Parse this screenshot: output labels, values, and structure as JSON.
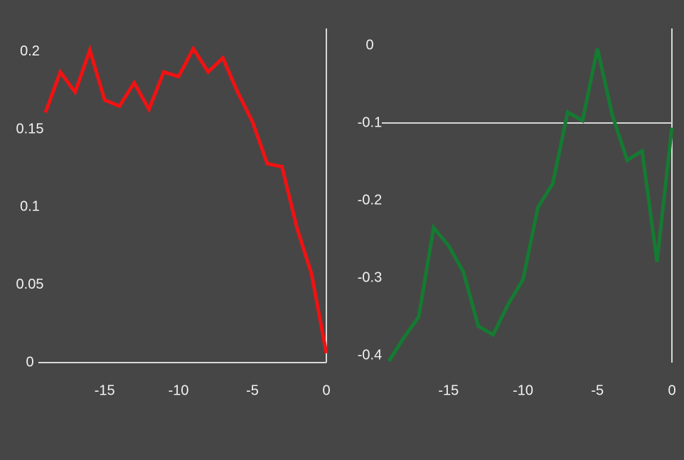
{
  "chart_data": [
    {
      "type": "line",
      "x": [
        -19,
        -18,
        -17,
        -16,
        -15,
        -14,
        -13,
        -12,
        -11,
        -10,
        -9,
        -8,
        -7,
        -6,
        -5,
        -4,
        -3,
        -2,
        -1,
        0
      ],
      "series": [
        {
          "color": "#f01212",
          "values": [
            0.161,
            0.187,
            0.174,
            0.201,
            0.169,
            0.165,
            0.18,
            0.163,
            0.187,
            0.184,
            0.202,
            0.187,
            0.196,
            0.174,
            0.155,
            0.128,
            0.126,
            0.087,
            0.057,
            0.006
          ]
        }
      ],
      "xlim": [
        -19,
        0
      ],
      "ylim": [
        0,
        0.215
      ],
      "xticks": [
        -15,
        -10,
        -5,
        0
      ],
      "yticks": [
        0,
        0.05,
        0.1,
        0.15,
        0.2
      ],
      "x_axis_at": 0
    },
    {
      "type": "line",
      "x": [
        -19,
        -18,
        -17,
        -16,
        -15,
        -14,
        -13,
        -12,
        -11,
        -10,
        -9,
        -8,
        -7,
        -6,
        -5,
        -4,
        -3,
        -2,
        -1,
        0
      ],
      "series": [
        {
          "color": "#157a32",
          "values": [
            -0.407,
            -0.377,
            -0.35,
            -0.235,
            -0.258,
            -0.292,
            -0.362,
            -0.373,
            -0.334,
            -0.302,
            -0.209,
            -0.178,
            -0.086,
            -0.097,
            -0.004,
            -0.09,
            -0.148,
            -0.136,
            -0.279,
            -0.106
          ]
        }
      ],
      "xlim": [
        -19,
        0
      ],
      "ylim": [
        -0.409,
        0.022
      ],
      "xticks": [
        -15,
        -10,
        -5,
        0
      ],
      "yticks": [
        0,
        -0.1,
        -0.2,
        -0.3,
        -0.4
      ],
      "x_axis_at": -0.1
    }
  ]
}
